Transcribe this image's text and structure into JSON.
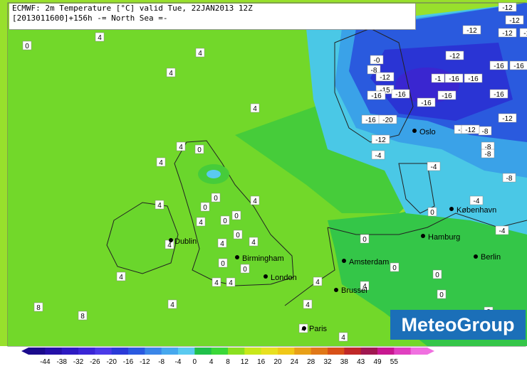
{
  "header": {
    "line1": "ECMWF: 2m Temperature [°C] valid Tue, 22JAN2013 12Z",
    "line2": "[2013011600]+156h  -= North Sea =-"
  },
  "brand": "MeteoGroup",
  "cities": [
    {
      "name": "Dublin"
    },
    {
      "name": "Birmingham"
    },
    {
      "name": "London"
    },
    {
      "name": "Amsterdam"
    },
    {
      "name": "Brussel"
    },
    {
      "name": "Paris"
    },
    {
      "name": "Hamburg"
    },
    {
      "name": "Berlin"
    },
    {
      "name": "København"
    },
    {
      "name": "Oslo"
    }
  ],
  "contour_labels": [
    "0",
    "-12",
    "-12",
    "-12",
    "-12",
    "-12",
    "-12",
    "-0",
    "-8",
    "-12",
    "-16",
    "-16",
    "-1",
    "-16",
    "-16",
    "-15",
    "-16",
    "-16",
    "-16",
    "-16",
    "-16",
    "-16",
    "-12",
    "-20",
    "-12",
    "-8",
    "-12",
    "-8",
    "-8",
    "-12",
    "-4",
    "-4",
    "-8",
    "-4",
    "-4",
    "4",
    "4",
    "4",
    "4",
    "4",
    "4",
    "4",
    "0",
    "0",
    "0",
    "0",
    "0",
    "0",
    "0",
    "0",
    "0",
    "0",
    "4",
    "4",
    "4",
    "4",
    "4",
    "4",
    "4",
    "8",
    "8",
    "4",
    "4",
    "4",
    "4",
    "0",
    "0",
    "0",
    "0",
    "4",
    "4",
    "4"
  ],
  "legend": {
    "ticks": [
      "-44",
      "-38",
      "-32",
      "-26",
      "-20",
      "-16",
      "-12",
      "-8",
      "-4",
      "0",
      "4",
      "8",
      "12",
      "16",
      "20",
      "24",
      "28",
      "32",
      "38",
      "43",
      "49",
      "55"
    ],
    "colors": [
      "#1a0a8c",
      "#2410a8",
      "#2d1ac2",
      "#3a26d6",
      "#4a3ae8",
      "#2a3ad8",
      "#2a5ae0",
      "#3a86e8",
      "#46a8ee",
      "#5acaf0",
      "#20c04a",
      "#3ad838",
      "#8ae020",
      "#c8e81a",
      "#e8e020",
      "#f0c818",
      "#e8a018",
      "#e07818",
      "#d85018",
      "#c02828",
      "#a01850",
      "#c81890",
      "#e040c0",
      "#f070e0"
    ]
  }
}
